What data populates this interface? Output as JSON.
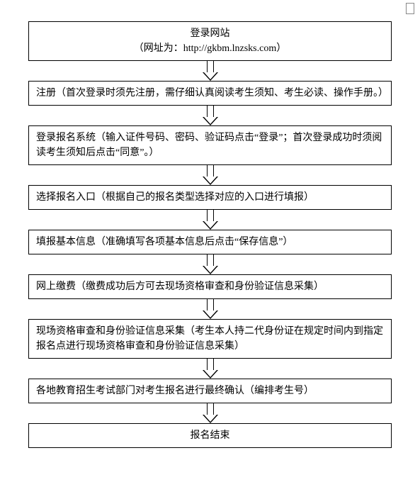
{
  "flowchart": {
    "type": "flowchart",
    "direction": "vertical",
    "box_border_color": "#000000",
    "box_background": "#ffffff",
    "text_color": "#000000",
    "font_family": "SimSun",
    "font_size_pt": 11,
    "arrow_style": "hollow-block-down",
    "arrow_fill": "#ffffff",
    "arrow_stroke": "#000000",
    "nodes": [
      {
        "id": "n1",
        "align": "center",
        "lines": [
          "登录网站",
          "（网址为：http://gkbm.lnzsks.com）"
        ]
      },
      {
        "id": "n2",
        "align": "left",
        "lines": [
          "注册（首次登录时须先注册，需仔细认真阅读考生须知、考生必读、操作手册。）"
        ]
      },
      {
        "id": "n3",
        "align": "left",
        "lines": [
          "登录报名系统（输入证件号码、密码、验证码点击“登录”；首次登录成功时须阅读考生须知后点击“同意”。）"
        ]
      },
      {
        "id": "n4",
        "align": "left",
        "lines": [
          "选择报名入口（根据自己的报名类型选择对应的入口进行填报）"
        ]
      },
      {
        "id": "n5",
        "align": "left",
        "lines": [
          "填报基本信息（准确填写各项基本信息后点击“保存信息”）"
        ]
      },
      {
        "id": "n6",
        "align": "left",
        "lines": [
          "网上缴费（缴费成功后方可去现场资格审查和身份验证信息采集）"
        ]
      },
      {
        "id": "n7",
        "align": "left",
        "lines": [
          "现场资格审查和身份验证信息采集（考生本人持二代身份证在规定时间内到指定报名点进行现场资格审查和身份验证信息采集）"
        ]
      },
      {
        "id": "n8",
        "align": "left",
        "lines": [
          "各地教育招生考试部门对考生报名进行最终确认（编排考生号）"
        ]
      },
      {
        "id": "n9",
        "align": "center",
        "lines": [
          "报名结束"
        ]
      }
    ],
    "edges": [
      {
        "from": "n1",
        "to": "n2"
      },
      {
        "from": "n2",
        "to": "n3"
      },
      {
        "from": "n3",
        "to": "n4"
      },
      {
        "from": "n4",
        "to": "n5"
      },
      {
        "from": "n5",
        "to": "n6"
      },
      {
        "from": "n6",
        "to": "n7"
      },
      {
        "from": "n7",
        "to": "n8"
      },
      {
        "from": "n8",
        "to": "n9"
      }
    ]
  }
}
